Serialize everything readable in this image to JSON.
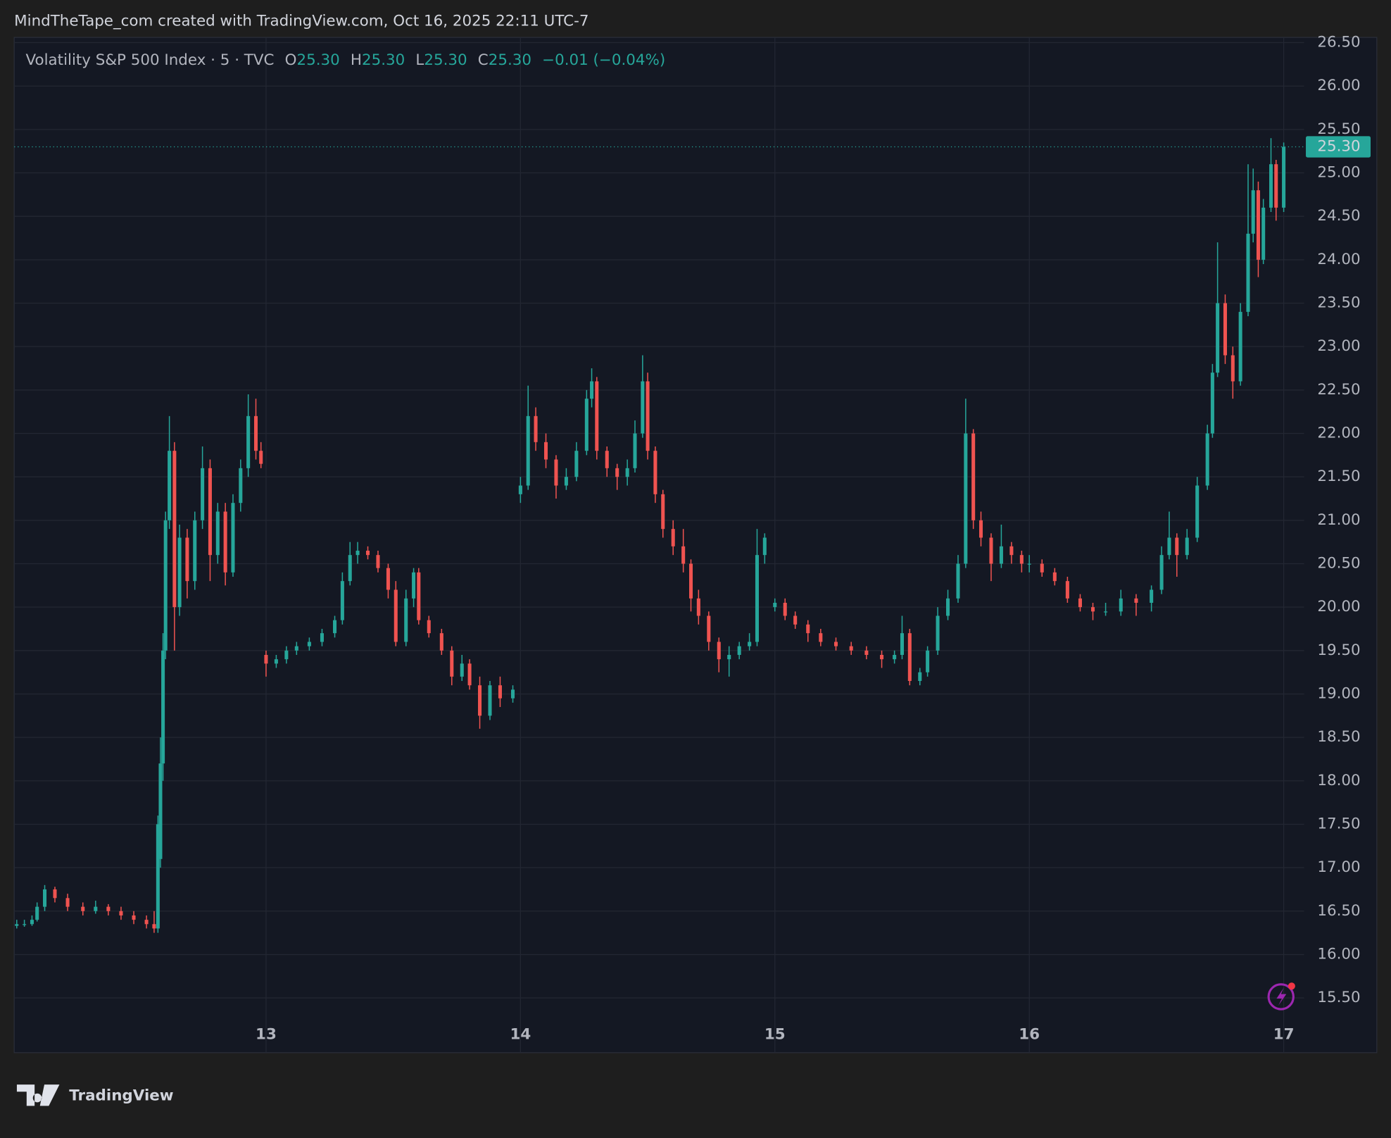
{
  "header": {
    "text": "MindTheTape_com created with TradingView.com, Oct 16, 2025 22:11 UTC-7"
  },
  "footer": {
    "logo": "TradingView"
  },
  "chart_data": {
    "type": "candlestick",
    "legend": {
      "symbol": "Volatility S&P 500 Index · 5 · TVC",
      "open_label": "O",
      "open": "25.30",
      "high_label": "H",
      "high": "25.30",
      "low_label": "L",
      "low": "25.30",
      "close_label": "C",
      "close": "25.30",
      "change": "−0.01 (−0.04%)"
    },
    "up_color": "#26a69a",
    "down_color": "#ef5350",
    "last_price": {
      "value": 25.3,
      "label": "25.30"
    },
    "grid": true,
    "xlim": [
      12.01,
      17.08
    ],
    "xticks": [
      13,
      14,
      15,
      16,
      17
    ],
    "ylim": [
      14.87,
      26.56
    ],
    "yticks": [
      {
        "value": 15.5,
        "label": "15.50"
      },
      {
        "value": 16,
        "label": "16.00"
      },
      {
        "value": 16.5,
        "label": "16.50"
      },
      {
        "value": 17,
        "label": "17.00"
      },
      {
        "value": 17.5,
        "label": "17.50"
      },
      {
        "value": 18,
        "label": "18.00"
      },
      {
        "value": 18.5,
        "label": "18.50"
      },
      {
        "value": 19,
        "label": "19.00"
      },
      {
        "value": 19.5,
        "label": "19.50"
      },
      {
        "value": 20,
        "label": "20.00"
      },
      {
        "value": 20.5,
        "label": "20.50"
      },
      {
        "value": 21,
        "label": "21.00"
      },
      {
        "value": 21.5,
        "label": "21.50"
      },
      {
        "value": 22,
        "label": "22.00"
      },
      {
        "value": 22.5,
        "label": "22.50"
      },
      {
        "value": 23,
        "label": "23.00"
      },
      {
        "value": 23.5,
        "label": "23.50"
      },
      {
        "value": 24,
        "label": "24.00"
      },
      {
        "value": 24.5,
        "label": "24.50"
      },
      {
        "value": 25,
        "label": "25.00"
      },
      {
        "value": 25.5,
        "label": "25.50"
      },
      {
        "value": 26,
        "label": "26.00"
      },
      {
        "value": 26.5,
        "label": "26.50"
      }
    ],
    "x": [
      12.02,
      12.05,
      12.08,
      12.1,
      12.13,
      12.17,
      12.22,
      12.28,
      12.33,
      12.38,
      12.43,
      12.48,
      12.53,
      12.56,
      12.575,
      12.585,
      12.595,
      12.605,
      12.62,
      12.64,
      12.66,
      12.69,
      12.72,
      12.75,
      12.78,
      12.81,
      12.84,
      12.87,
      12.9,
      12.93,
      12.96,
      12.98,
      13.0,
      13.04,
      13.08,
      13.12,
      13.17,
      13.22,
      13.27,
      13.3,
      13.33,
      13.36,
      13.4,
      13.44,
      13.48,
      13.51,
      13.55,
      13.58,
      13.6,
      13.64,
      13.69,
      13.73,
      13.77,
      13.8,
      13.84,
      13.88,
      13.92,
      13.97,
      14.0,
      14.03,
      14.06,
      14.1,
      14.14,
      14.18,
      14.22,
      14.26,
      14.28,
      14.3,
      14.34,
      14.38,
      14.42,
      14.45,
      14.48,
      14.5,
      14.53,
      14.56,
      14.6,
      14.64,
      14.67,
      14.7,
      14.74,
      14.78,
      14.82,
      14.86,
      14.9,
      14.93,
      14.96,
      15.0,
      15.04,
      15.08,
      15.13,
      15.18,
      15.24,
      15.3,
      15.36,
      15.42,
      15.47,
      15.5,
      15.53,
      15.57,
      15.6,
      15.64,
      15.68,
      15.72,
      15.75,
      15.78,
      15.81,
      15.85,
      15.89,
      15.93,
      15.97,
      16.0,
      16.05,
      16.1,
      16.15,
      16.2,
      16.25,
      16.3,
      16.36,
      16.42,
      16.48,
      16.52,
      16.55,
      16.58,
      16.62,
      16.66,
      16.7,
      16.72,
      16.74,
      16.77,
      16.8,
      16.83,
      16.86,
      16.88,
      16.9,
      16.92,
      16.95,
      16.97,
      17.0
    ],
    "ohlc": [
      [
        16.33,
        16.4,
        16.3,
        16.35
      ],
      [
        16.35,
        16.4,
        16.32,
        16.35
      ],
      [
        16.35,
        16.45,
        16.33,
        16.4
      ],
      [
        16.4,
        16.6,
        16.38,
        16.55
      ],
      [
        16.55,
        16.8,
        16.5,
        16.75
      ],
      [
        16.75,
        16.78,
        16.6,
        16.65
      ],
      [
        16.65,
        16.7,
        16.5,
        16.55
      ],
      [
        16.55,
        16.6,
        16.45,
        16.5
      ],
      [
        16.5,
        16.62,
        16.47,
        16.55
      ],
      [
        16.55,
        16.58,
        16.45,
        16.5
      ],
      [
        16.5,
        16.55,
        16.4,
        16.45
      ],
      [
        16.45,
        16.5,
        16.35,
        16.4
      ],
      [
        16.4,
        16.45,
        16.3,
        16.35
      ],
      [
        16.35,
        16.5,
        16.25,
        16.3
      ],
      [
        16.3,
        17.6,
        16.25,
        17.5
      ],
      [
        17.1,
        18.5,
        17.0,
        18.2
      ],
      [
        18.2,
        19.7,
        18.0,
        19.5
      ],
      [
        19.5,
        21.1,
        19.4,
        21.0
      ],
      [
        21.0,
        22.2,
        20.9,
        21.8
      ],
      [
        21.8,
        21.9,
        19.5,
        20.0
      ],
      [
        20.0,
        20.95,
        19.9,
        20.8
      ],
      [
        20.8,
        20.9,
        20.1,
        20.3
      ],
      [
        20.3,
        21.1,
        20.2,
        21.0
      ],
      [
        21.0,
        21.85,
        20.9,
        21.6
      ],
      [
        21.6,
        21.7,
        20.3,
        20.6
      ],
      [
        20.6,
        21.2,
        20.5,
        21.1
      ],
      [
        21.1,
        21.2,
        20.25,
        20.4
      ],
      [
        20.4,
        21.3,
        20.35,
        21.2
      ],
      [
        21.2,
        21.7,
        21.1,
        21.6
      ],
      [
        21.6,
        22.45,
        21.5,
        22.2
      ],
      [
        22.2,
        22.4,
        21.7,
        21.8
      ],
      [
        21.8,
        21.9,
        21.6,
        21.65
      ],
      [
        19.45,
        19.5,
        19.2,
        19.35
      ],
      [
        19.35,
        19.45,
        19.3,
        19.4
      ],
      [
        19.4,
        19.55,
        19.35,
        19.5
      ],
      [
        19.5,
        19.6,
        19.45,
        19.55
      ],
      [
        19.55,
        19.65,
        19.5,
        19.6
      ],
      [
        19.6,
        19.75,
        19.55,
        19.7
      ],
      [
        19.7,
        19.9,
        19.65,
        19.85
      ],
      [
        19.85,
        20.4,
        19.8,
        20.3
      ],
      [
        20.3,
        20.75,
        20.25,
        20.6
      ],
      [
        20.6,
        20.75,
        20.5,
        20.65
      ],
      [
        20.65,
        20.7,
        20.55,
        20.6
      ],
      [
        20.6,
        20.65,
        20.4,
        20.45
      ],
      [
        20.45,
        20.5,
        20.1,
        20.2
      ],
      [
        20.2,
        20.3,
        19.55,
        19.6
      ],
      [
        19.6,
        20.2,
        19.55,
        20.1
      ],
      [
        20.1,
        20.45,
        20.0,
        20.4
      ],
      [
        20.4,
        20.45,
        19.8,
        19.85
      ],
      [
        19.85,
        19.9,
        19.65,
        19.7
      ],
      [
        19.7,
        19.75,
        19.45,
        19.5
      ],
      [
        19.5,
        19.55,
        19.1,
        19.2
      ],
      [
        19.2,
        19.45,
        19.15,
        19.35
      ],
      [
        19.35,
        19.4,
        19.05,
        19.1
      ],
      [
        19.1,
        19.2,
        18.6,
        18.75
      ],
      [
        18.75,
        19.15,
        18.7,
        19.1
      ],
      [
        19.1,
        19.2,
        18.85,
        18.95
      ],
      [
        18.95,
        19.1,
        18.9,
        19.05
      ],
      [
        21.3,
        21.5,
        21.2,
        21.4
      ],
      [
        21.4,
        22.55,
        21.35,
        22.2
      ],
      [
        22.2,
        22.3,
        21.8,
        21.9
      ],
      [
        21.9,
        22.0,
        21.6,
        21.7
      ],
      [
        21.7,
        21.75,
        21.25,
        21.4
      ],
      [
        21.4,
        21.6,
        21.35,
        21.5
      ],
      [
        21.5,
        21.9,
        21.45,
        21.8
      ],
      [
        21.8,
        22.5,
        21.75,
        22.4
      ],
      [
        22.4,
        22.75,
        22.3,
        22.6
      ],
      [
        22.6,
        22.65,
        21.7,
        21.8
      ],
      [
        21.8,
        21.85,
        21.5,
        21.6
      ],
      [
        21.6,
        21.65,
        21.35,
        21.5
      ],
      [
        21.5,
        21.7,
        21.4,
        21.6
      ],
      [
        21.6,
        22.15,
        21.55,
        22.0
      ],
      [
        22.0,
        22.9,
        21.95,
        22.6
      ],
      [
        22.6,
        22.7,
        21.7,
        21.8
      ],
      [
        21.8,
        21.85,
        21.2,
        21.3
      ],
      [
        21.3,
        21.35,
        20.8,
        20.9
      ],
      [
        20.9,
        21.0,
        20.6,
        20.7
      ],
      [
        20.7,
        20.9,
        20.4,
        20.5
      ],
      [
        20.5,
        20.55,
        19.95,
        20.1
      ],
      [
        20.1,
        20.2,
        19.8,
        19.9
      ],
      [
        19.9,
        19.95,
        19.5,
        19.6
      ],
      [
        19.6,
        19.65,
        19.25,
        19.4
      ],
      [
        19.4,
        19.55,
        19.2,
        19.45
      ],
      [
        19.45,
        19.6,
        19.4,
        19.55
      ],
      [
        19.55,
        19.7,
        19.5,
        19.6
      ],
      [
        19.6,
        20.9,
        19.55,
        20.6
      ],
      [
        20.6,
        20.85,
        20.5,
        20.8
      ],
      [
        20.0,
        20.1,
        19.95,
        20.05
      ],
      [
        20.05,
        20.1,
        19.85,
        19.9
      ],
      [
        19.9,
        19.95,
        19.75,
        19.8
      ],
      [
        19.8,
        19.85,
        19.6,
        19.7
      ],
      [
        19.7,
        19.75,
        19.55,
        19.6
      ],
      [
        19.6,
        19.65,
        19.5,
        19.55
      ],
      [
        19.55,
        19.6,
        19.45,
        19.5
      ],
      [
        19.5,
        19.55,
        19.4,
        19.45
      ],
      [
        19.45,
        19.5,
        19.3,
        19.4
      ],
      [
        19.4,
        19.5,
        19.35,
        19.45
      ],
      [
        19.45,
        19.9,
        19.4,
        19.7
      ],
      [
        19.7,
        19.75,
        19.1,
        19.15
      ],
      [
        19.15,
        19.3,
        19.1,
        19.25
      ],
      [
        19.25,
        19.55,
        19.2,
        19.5
      ],
      [
        19.5,
        20.0,
        19.45,
        19.9
      ],
      [
        19.9,
        20.2,
        19.85,
        20.1
      ],
      [
        20.1,
        20.6,
        20.05,
        20.5
      ],
      [
        20.5,
        22.4,
        20.45,
        22.0
      ],
      [
        22.0,
        22.05,
        20.9,
        21.0
      ],
      [
        21.0,
        21.1,
        20.7,
        20.8
      ],
      [
        20.8,
        20.85,
        20.3,
        20.5
      ],
      [
        20.5,
        20.95,
        20.45,
        20.7
      ],
      [
        20.7,
        20.75,
        20.5,
        20.6
      ],
      [
        20.6,
        20.65,
        20.4,
        20.5
      ],
      [
        20.5,
        20.6,
        20.4,
        20.5
      ],
      [
        20.5,
        20.55,
        20.35,
        20.4
      ],
      [
        20.4,
        20.45,
        20.25,
        20.3
      ],
      [
        20.3,
        20.35,
        20.05,
        20.1
      ],
      [
        20.1,
        20.15,
        19.95,
        20.0
      ],
      [
        20.0,
        20.05,
        19.85,
        19.95
      ],
      [
        19.95,
        20.05,
        19.9,
        19.95
      ],
      [
        19.95,
        20.2,
        19.9,
        20.1
      ],
      [
        20.1,
        20.15,
        19.9,
        20.05
      ],
      [
        20.05,
        20.25,
        19.95,
        20.2
      ],
      [
        20.2,
        20.7,
        20.15,
        20.6
      ],
      [
        20.6,
        21.1,
        20.55,
        20.8
      ],
      [
        20.8,
        20.85,
        20.35,
        20.6
      ],
      [
        20.6,
        20.9,
        20.55,
        20.8
      ],
      [
        20.8,
        21.5,
        20.75,
        21.4
      ],
      [
        21.4,
        22.1,
        21.35,
        22.0
      ],
      [
        22.0,
        22.8,
        21.95,
        22.7
      ],
      [
        22.7,
        24.2,
        22.65,
        23.5
      ],
      [
        23.5,
        23.6,
        22.8,
        22.9
      ],
      [
        22.9,
        23.0,
        22.4,
        22.6
      ],
      [
        22.6,
        23.5,
        22.55,
        23.4
      ],
      [
        23.4,
        25.1,
        23.35,
        24.3
      ],
      [
        24.3,
        25.05,
        24.2,
        24.8
      ],
      [
        24.8,
        24.9,
        23.8,
        24.0
      ],
      [
        24.0,
        24.7,
        23.95,
        24.6
      ],
      [
        24.6,
        25.4,
        24.55,
        25.1
      ],
      [
        25.1,
        25.15,
        24.45,
        24.6
      ],
      [
        24.6,
        25.35,
        24.55,
        25.3
      ]
    ]
  }
}
